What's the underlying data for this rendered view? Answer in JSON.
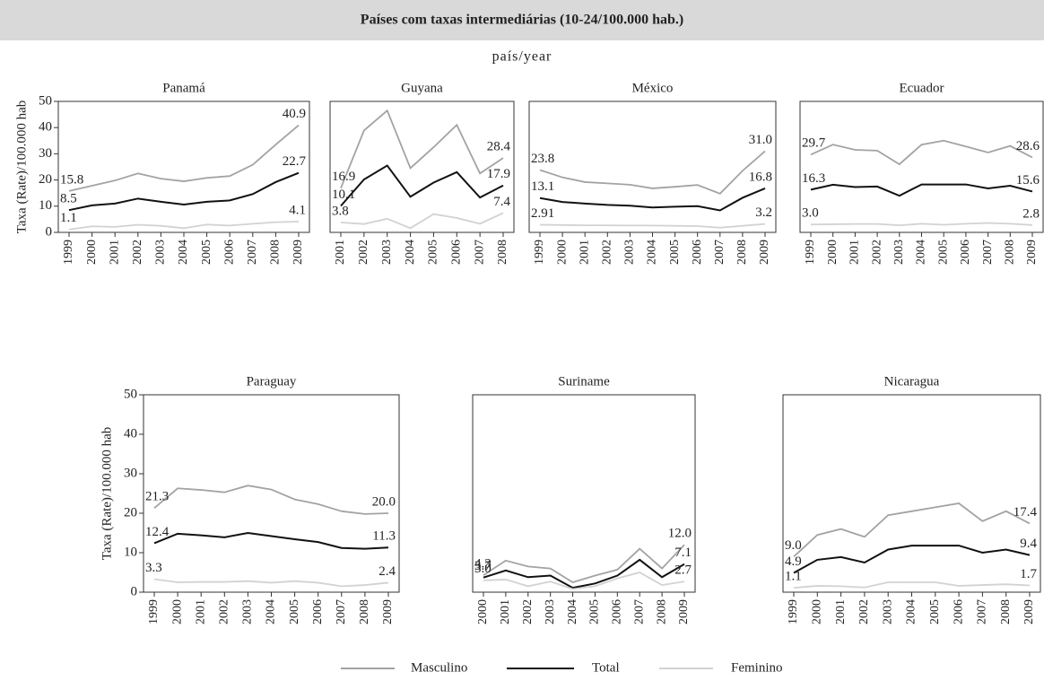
{
  "header": {
    "title": "Países com taxas intermediárias (10-24/100.000 hab.)",
    "subtitle": "país/year"
  },
  "chart_data": [
    {
      "type": "line",
      "title": "Panamá",
      "ylabel": "Taxa (Rate)/100.000 hab",
      "categories": [
        "1999",
        "2000",
        "2001",
        "2002",
        "2003",
        "2004",
        "2005",
        "2006",
        "2007",
        "2008",
        "2009"
      ],
      "ylim": [
        0,
        50
      ],
      "yticks": [
        0,
        10,
        20,
        30,
        40,
        50
      ],
      "series": [
        {
          "name": "Masculino",
          "color": "#a3a3a3",
          "values": [
            15.8,
            17.8,
            19.8,
            22.5,
            20.5,
            19.5,
            20.8,
            21.5,
            25.8,
            33.5,
            40.9
          ],
          "value_labels": [
            "15.8",
            null,
            null,
            null,
            null,
            null,
            null,
            null,
            null,
            null,
            "40.9"
          ]
        },
        {
          "name": "Total",
          "color": "#111111",
          "values": [
            8.5,
            10.3,
            11.0,
            12.9,
            11.7,
            10.6,
            11.7,
            12.2,
            14.6,
            19.2,
            22.7
          ],
          "value_labels": [
            "8.5",
            null,
            null,
            null,
            null,
            null,
            null,
            null,
            null,
            null,
            "22.7"
          ]
        },
        {
          "name": "Feminino",
          "color": "#d2d2d2",
          "values": [
            1.1,
            2.3,
            2.1,
            2.9,
            2.5,
            1.6,
            3.0,
            2.6,
            3.3,
            3.9,
            4.1
          ],
          "value_labels": [
            "1.1",
            null,
            null,
            null,
            null,
            null,
            null,
            null,
            null,
            null,
            "4.1"
          ]
        }
      ]
    },
    {
      "type": "line",
      "title": "Guyana",
      "categories": [
        "2001",
        "2002",
        "2003",
        "2004",
        "2005",
        "2006",
        "2007",
        "2008"
      ],
      "ylim": [
        0,
        50
      ],
      "series": [
        {
          "name": "Masculino",
          "color": "#a3a3a3",
          "values": [
            16.9,
            38.9,
            46.5,
            24.5,
            32.5,
            41.0,
            22.5,
            28.4
          ],
          "value_labels": [
            "16.9",
            null,
            null,
            null,
            null,
            null,
            null,
            "28.4"
          ]
        },
        {
          "name": "Total",
          "color": "#111111",
          "values": [
            10.1,
            20.2,
            25.5,
            13.6,
            19.0,
            23.0,
            13.3,
            17.9
          ],
          "value_labels": [
            "10.1",
            null,
            null,
            null,
            null,
            null,
            null,
            "17.9"
          ]
        },
        {
          "name": "Feminino",
          "color": "#d2d2d2",
          "values": [
            3.8,
            3.2,
            5.2,
            1.6,
            7.0,
            5.5,
            3.3,
            7.4
          ],
          "value_labels": [
            "3.8",
            null,
            null,
            null,
            null,
            null,
            null,
            "7.4"
          ]
        }
      ]
    },
    {
      "type": "line",
      "title": "México",
      "categories": [
        "1999",
        "2000",
        "2001",
        "2002",
        "2003",
        "2004",
        "2005",
        "2006",
        "2007",
        "2008",
        "2009"
      ],
      "ylim": [
        0,
        50
      ],
      "series": [
        {
          "name": "Masculino",
          "color": "#a3a3a3",
          "values": [
            23.8,
            21.0,
            19.2,
            18.7,
            18.2,
            16.8,
            17.4,
            18.1,
            14.8,
            23.5,
            31.0
          ],
          "value_labels": [
            "23.8",
            null,
            null,
            null,
            null,
            null,
            null,
            null,
            null,
            null,
            "31.0"
          ]
        },
        {
          "name": "Total",
          "color": "#111111",
          "values": [
            13.1,
            11.6,
            11.0,
            10.5,
            10.2,
            9.5,
            9.8,
            10.0,
            8.4,
            13.2,
            16.8
          ],
          "value_labels": [
            "13.1",
            null,
            null,
            null,
            null,
            null,
            null,
            null,
            null,
            null,
            "16.8"
          ]
        },
        {
          "name": "Feminino",
          "color": "#d2d2d2",
          "values": [
            2.91,
            2.8,
            2.7,
            2.7,
            2.6,
            2.6,
            2.5,
            2.4,
            1.8,
            2.5,
            3.2
          ],
          "value_labels": [
            "2.91",
            null,
            null,
            null,
            null,
            null,
            null,
            null,
            null,
            null,
            "3.2"
          ]
        }
      ]
    },
    {
      "type": "line",
      "title": "Ecuador",
      "categories": [
        "1999",
        "2000",
        "2001",
        "2002",
        "2003",
        "2004",
        "2005",
        "2006",
        "2007",
        "2008",
        "2009"
      ],
      "ylim": [
        0,
        50
      ],
      "series": [
        {
          "name": "Masculino",
          "color": "#a3a3a3",
          "values": [
            29.7,
            33.5,
            31.5,
            31.2,
            26.0,
            33.5,
            35.0,
            32.8,
            30.5,
            33.0,
            28.6
          ],
          "value_labels": [
            "29.7",
            null,
            null,
            null,
            null,
            null,
            null,
            null,
            null,
            null,
            "28.6"
          ]
        },
        {
          "name": "Total",
          "color": "#111111",
          "values": [
            16.3,
            18.2,
            17.3,
            17.5,
            14.0,
            18.3,
            18.3,
            18.3,
            16.8,
            17.8,
            15.6
          ],
          "value_labels": [
            "16.3",
            null,
            null,
            null,
            null,
            null,
            null,
            null,
            null,
            null,
            "15.6"
          ]
        },
        {
          "name": "Feminino",
          "color": "#d2d2d2",
          "values": [
            3.0,
            3.1,
            3.2,
            3.2,
            2.7,
            3.3,
            2.9,
            3.3,
            3.6,
            3.3,
            2.8
          ],
          "value_labels": [
            "3.0",
            null,
            null,
            null,
            null,
            null,
            null,
            null,
            null,
            null,
            "2.8"
          ]
        }
      ]
    },
    {
      "type": "line",
      "title": "Paraguay",
      "ylabel": "Taxa (Rate)/100.000 hab",
      "categories": [
        "1999",
        "2000",
        "2001",
        "2002",
        "2003",
        "2004",
        "2005",
        "2006",
        "2007",
        "2008",
        "2009"
      ],
      "ylim": [
        0,
        50
      ],
      "yticks": [
        0,
        10,
        20,
        30,
        40,
        50
      ],
      "series": [
        {
          "name": "Masculino",
          "color": "#a3a3a3",
          "values": [
            21.3,
            26.3,
            25.9,
            25.3,
            27.0,
            26.0,
            23.5,
            22.3,
            20.5,
            19.8,
            20.0
          ],
          "value_labels": [
            "21.3",
            null,
            null,
            null,
            null,
            null,
            null,
            null,
            null,
            null,
            "20.0"
          ]
        },
        {
          "name": "Total",
          "color": "#111111",
          "values": [
            12.4,
            14.8,
            14.4,
            13.9,
            15.0,
            14.2,
            13.4,
            12.7,
            11.2,
            11.0,
            11.3
          ],
          "value_labels": [
            "12.4",
            null,
            null,
            null,
            null,
            null,
            null,
            null,
            null,
            null,
            "11.3"
          ]
        },
        {
          "name": "Feminino",
          "color": "#d2d2d2",
          "values": [
            3.3,
            2.5,
            2.6,
            2.6,
            2.8,
            2.4,
            2.8,
            2.4,
            1.5,
            1.8,
            2.4
          ],
          "value_labels": [
            "3.3",
            null,
            null,
            null,
            null,
            null,
            null,
            null,
            null,
            null,
            "2.4"
          ]
        }
      ]
    },
    {
      "type": "line",
      "title": "Suriname",
      "categories": [
        "2000",
        "2001",
        "2002",
        "2003",
        "2004",
        "2005",
        "2006",
        "2007",
        "2008",
        "2009"
      ],
      "ylim": [
        0,
        50
      ],
      "series": [
        {
          "name": "Masculino",
          "color": "#a3a3a3",
          "values": [
            4.3,
            8.0,
            6.5,
            6.0,
            2.5,
            4.2,
            5.7,
            11.0,
            6.0,
            12.0
          ],
          "value_labels": [
            "4.3",
            null,
            null,
            null,
            null,
            null,
            null,
            null,
            null,
            "12.0"
          ]
        },
        {
          "name": "Total",
          "color": "#111111",
          "values": [
            3.7,
            5.5,
            3.8,
            4.2,
            1.1,
            2.2,
            4.2,
            8.2,
            3.8,
            7.1
          ],
          "value_labels": [
            "3.7",
            null,
            null,
            null,
            null,
            null,
            null,
            null,
            null,
            "7.1"
          ]
        },
        {
          "name": "Feminino",
          "color": "#d2d2d2",
          "values": [
            3.0,
            3.2,
            1.5,
            2.7,
            0.8,
            1.5,
            3.5,
            5.0,
            1.8,
            2.7
          ],
          "value_labels": [
            "3.0",
            null,
            null,
            null,
            null,
            null,
            null,
            null,
            null,
            "2.7"
          ]
        }
      ]
    },
    {
      "type": "line",
      "title": "Nicaragua",
      "categories": [
        "1999",
        "2000",
        "2001",
        "2002",
        "2003",
        "2004",
        "2005",
        "2006",
        "2007",
        "2008",
        "2009"
      ],
      "ylim": [
        0,
        50
      ],
      "series": [
        {
          "name": "Masculino",
          "color": "#a3a3a3",
          "values": [
            9.0,
            14.5,
            16.0,
            14.0,
            19.5,
            20.5,
            21.5,
            22.5,
            18.0,
            20.5,
            17.4
          ],
          "value_labels": [
            "9.0",
            null,
            null,
            null,
            null,
            null,
            null,
            null,
            null,
            null,
            "17.4"
          ]
        },
        {
          "name": "Total",
          "color": "#111111",
          "values": [
            4.9,
            8.2,
            8.9,
            7.5,
            10.8,
            11.8,
            11.8,
            11.8,
            10.0,
            10.8,
            9.4
          ],
          "value_labels": [
            "4.9",
            null,
            null,
            null,
            null,
            null,
            null,
            null,
            null,
            null,
            "9.4"
          ]
        },
        {
          "name": "Feminino",
          "color": "#d2d2d2",
          "values": [
            1.1,
            1.6,
            1.5,
            1.2,
            2.5,
            2.5,
            2.5,
            1.6,
            1.8,
            2.0,
            1.7
          ],
          "value_labels": [
            "1.1",
            null,
            null,
            null,
            null,
            null,
            null,
            null,
            null,
            null,
            "1.7"
          ]
        }
      ]
    }
  ]
}
